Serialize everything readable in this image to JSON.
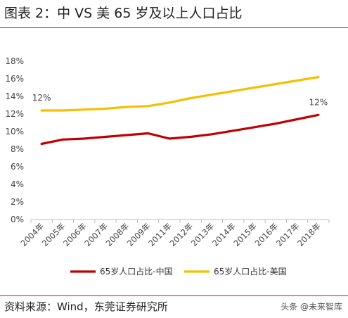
{
  "header": {
    "title": "图表 2：中 VS 美 65 岁及以上人口占比"
  },
  "footer": {
    "source": "资料来源：Wind，东莞证券研究所",
    "watermark": "头条 @未来智库"
  },
  "chart_data": {
    "type": "line",
    "categories": [
      "2004年",
      "2005年",
      "2006年",
      "2007年",
      "2008年",
      "2009年",
      "2011年",
      "2012年",
      "2013年",
      "2014年",
      "2015年",
      "2016年",
      "2017年",
      "2018年"
    ],
    "series": [
      {
        "name": "65岁人口占比-中国",
        "color": "#c00000",
        "values": [
          8.6,
          9.1,
          9.2,
          9.4,
          9.6,
          9.8,
          9.2,
          9.4,
          9.7,
          10.1,
          10.5,
          10.9,
          11.4,
          11.9
        ]
      },
      {
        "name": "65岁人口占比-美国",
        "color": "#f5c000",
        "values": [
          12.4,
          12.4,
          12.5,
          12.6,
          12.8,
          12.9,
          13.3,
          13.8,
          14.2,
          14.6,
          15.0,
          15.4,
          15.8,
          16.2
        ]
      }
    ],
    "annotations": [
      {
        "text": "12%",
        "series": 1,
        "index": 0
      },
      {
        "text": "12%",
        "series": 0,
        "index": 13
      }
    ],
    "y_ticks": [
      "0%",
      "2%",
      "4%",
      "6%",
      "8%",
      "10%",
      "12%",
      "14%",
      "16%",
      "18%"
    ],
    "ylim": [
      0,
      18
    ],
    "grid": false,
    "legend_position": "bottom"
  }
}
